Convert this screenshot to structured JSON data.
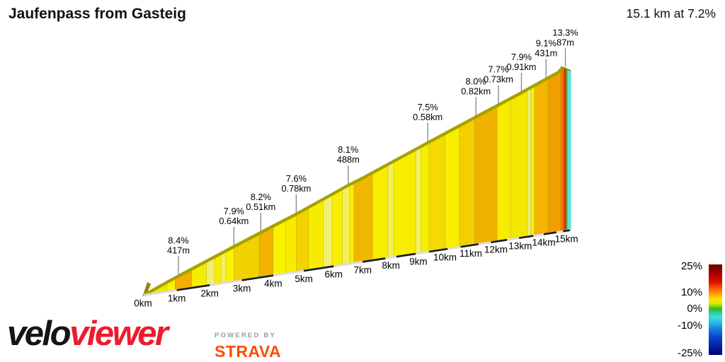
{
  "header": {
    "title": "Jaufenpass from Gasteig",
    "ride_stats": "15.1 km at 7.2%"
  },
  "chart_data": {
    "type": "area",
    "title": "Jaufenpass from Gasteig",
    "subtitle": "15.1 km at 7.2%",
    "total_distance_km": 15.1,
    "average_gradient_pct": 7.2,
    "x_tick_labels": [
      "0km",
      "1km",
      "2km",
      "3km",
      "4km",
      "5km",
      "6km",
      "7km",
      "8km",
      "9km",
      "10km",
      "11km",
      "12km",
      "13km",
      "14km",
      "15km"
    ],
    "legend": {
      "tick_labels": [
        "25%",
        "10%",
        "0%",
        "-10%",
        "-25%"
      ],
      "gradient_stops": [
        {
          "pos": 0,
          "color": "#6b0000"
        },
        {
          "pos": 10,
          "color": "#a80000"
        },
        {
          "pos": 20,
          "color": "#e01000"
        },
        {
          "pos": 27,
          "color": "#ff6000"
        },
        {
          "pos": 33,
          "color": "#ffa800"
        },
        {
          "pos": 38,
          "color": "#ffe000"
        },
        {
          "pos": 43,
          "color": "#d8ee00"
        },
        {
          "pos": 46,
          "color": "#8cd800"
        },
        {
          "pos": 49,
          "color": "#2eb82e"
        },
        {
          "pos": 53,
          "color": "#2ecc8c"
        },
        {
          "pos": 58,
          "color": "#3cdede"
        },
        {
          "pos": 65,
          "color": "#28b4e8"
        },
        {
          "pos": 72,
          "color": "#1478e0"
        },
        {
          "pos": 82,
          "color": "#0a3cc8"
        },
        {
          "pos": 100,
          "color": "#000078"
        }
      ]
    },
    "gradient_annotations": [
      {
        "km": 1.05,
        "gradient": "8.4%",
        "detail": "417m"
      },
      {
        "km": 2.75,
        "gradient": "7.9%",
        "detail": "0.64km"
      },
      {
        "km": 3.6,
        "gradient": "8.2%",
        "detail": "0.51km"
      },
      {
        "km": 4.75,
        "gradient": "7.6%",
        "detail": "0.78km"
      },
      {
        "km": 6.5,
        "gradient": "8.1%",
        "detail": "488m"
      },
      {
        "km": 9.35,
        "gradient": "7.5%",
        "detail": "0.58km"
      },
      {
        "km": 11.2,
        "gradient": "8.0%",
        "detail": "0.82km"
      },
      {
        "km": 12.1,
        "gradient": "7.7%",
        "detail": "0.73km"
      },
      {
        "km": 13.05,
        "gradient": "7.9%",
        "detail": "0.91km"
      },
      {
        "km": 14.1,
        "gradient": "9.1%",
        "detail": "431m"
      },
      {
        "km": 14.95,
        "gradient": "13.3%",
        "detail": "87m"
      }
    ],
    "segments": [
      {
        "from_km": 0.0,
        "to_km": 0.7,
        "color": "#f2e600"
      },
      {
        "from_km": 0.7,
        "to_km": 0.95,
        "color": "#fbf200"
      },
      {
        "from_km": 0.95,
        "to_km": 1.45,
        "color": "#f0ae00"
      },
      {
        "from_km": 1.45,
        "to_km": 1.9,
        "color": "#f6ec00"
      },
      {
        "from_km": 1.9,
        "to_km": 2.15,
        "color": "#f2ef6e"
      },
      {
        "from_km": 2.15,
        "to_km": 2.35,
        "color": "#f8ee00"
      },
      {
        "from_km": 2.35,
        "to_km": 2.5,
        "color": "#f2ef6e"
      },
      {
        "from_km": 2.5,
        "to_km": 2.75,
        "color": "#fbf200"
      },
      {
        "from_km": 2.75,
        "to_km": 3.55,
        "color": "#f1d200"
      },
      {
        "from_km": 3.55,
        "to_km": 4.0,
        "color": "#f0b400"
      },
      {
        "from_km": 4.0,
        "to_km": 4.4,
        "color": "#fbf200"
      },
      {
        "from_km": 4.4,
        "to_km": 4.75,
        "color": "#f7ec00"
      },
      {
        "from_km": 4.75,
        "to_km": 5.15,
        "color": "#f3d200"
      },
      {
        "from_km": 5.15,
        "to_km": 5.65,
        "color": "#f7ec00"
      },
      {
        "from_km": 5.65,
        "to_km": 5.95,
        "color": "#f2ef6e"
      },
      {
        "from_km": 5.95,
        "to_km": 6.3,
        "color": "#f8ee00"
      },
      {
        "from_km": 6.3,
        "to_km": 6.55,
        "color": "#f4f05a"
      },
      {
        "from_km": 6.55,
        "to_km": 6.7,
        "color": "#f8ee00"
      },
      {
        "from_km": 6.7,
        "to_km": 7.35,
        "color": "#f1b600"
      },
      {
        "from_km": 7.35,
        "to_km": 7.9,
        "color": "#f8ec00"
      },
      {
        "from_km": 7.9,
        "to_km": 8.1,
        "color": "#f4f05a"
      },
      {
        "from_km": 8.1,
        "to_km": 8.9,
        "color": "#f7ed00"
      },
      {
        "from_km": 8.9,
        "to_km": 9.1,
        "color": "#f4f05a"
      },
      {
        "from_km": 9.1,
        "to_km": 9.4,
        "color": "#f7ed00"
      },
      {
        "from_km": 9.4,
        "to_km": 10.0,
        "color": "#f3da00"
      },
      {
        "from_km": 10.0,
        "to_km": 10.55,
        "color": "#f8ee00"
      },
      {
        "from_km": 10.55,
        "to_km": 11.15,
        "color": "#f3cf00"
      },
      {
        "from_km": 11.15,
        "to_km": 12.05,
        "color": "#efb200"
      },
      {
        "from_km": 12.05,
        "to_km": 12.6,
        "color": "#f7ec00"
      },
      {
        "from_km": 12.6,
        "to_km": 13.3,
        "color": "#f5e800"
      },
      {
        "from_km": 13.3,
        "to_km": 13.45,
        "color": "#e9ee72"
      },
      {
        "from_km": 13.45,
        "to_km": 13.6,
        "color": "#f6f000"
      },
      {
        "from_km": 13.6,
        "to_km": 14.2,
        "color": "#f4b400"
      },
      {
        "from_km": 14.2,
        "to_km": 14.75,
        "color": "#f09e00"
      },
      {
        "from_km": 14.75,
        "to_km": 14.88,
        "color": "#ee6f00"
      },
      {
        "from_km": 14.88,
        "to_km": 14.99,
        "color": "#e62e00"
      },
      {
        "from_km": 14.99,
        "to_km": 15.04,
        "color": "#2cc43c"
      },
      {
        "from_km": 15.04,
        "to_km": 15.2,
        "color": "#55e2e2"
      }
    ],
    "ridge_color": "#a6a200",
    "start_cap_color": "#8c8800"
  },
  "footer": {
    "logo_velo": "velo",
    "logo_viewer": "viewer",
    "powered_by": "POWERED BY",
    "strava": "STRAVA",
    "strava_color": "#fc4c02",
    "viewer_color": "#ee1b2e"
  }
}
